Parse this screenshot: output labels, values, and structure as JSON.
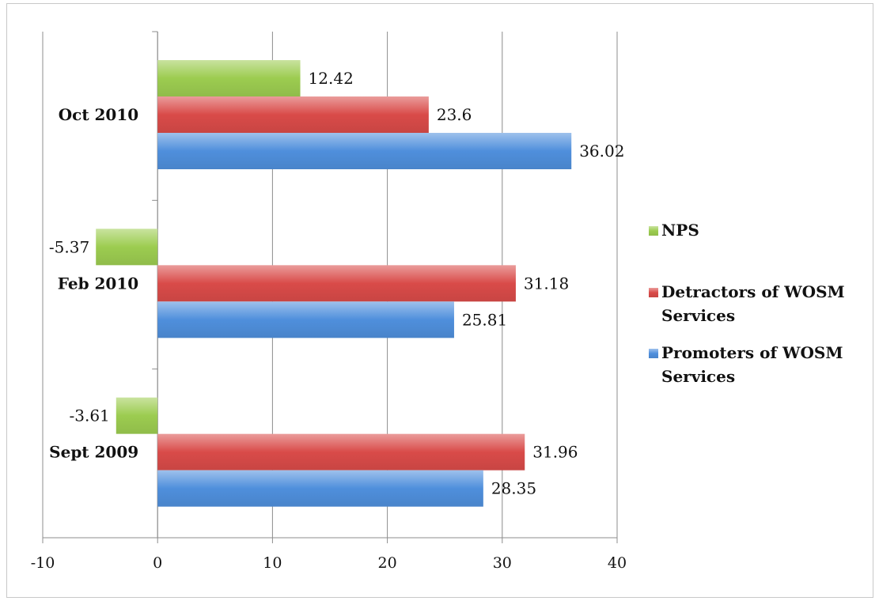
{
  "chart_data": {
    "type": "bar",
    "orientation": "horizontal",
    "title": "",
    "xlabel": "",
    "ylabel": "",
    "categories": [
      "Sept 2009",
      "Feb 2010",
      "Oct 2010"
    ],
    "series": [
      {
        "name": "Promoters of WOSM Services",
        "values": [
          28.35,
          25.81,
          36.02
        ],
        "labels": [
          "28.35",
          "25.81",
          "36.02"
        ]
      },
      {
        "name": "Detractors of WOSM Services",
        "values": [
          31.96,
          31.18,
          23.6
        ],
        "labels": [
          "31.96",
          "31.18",
          "23.6"
        ]
      },
      {
        "name": "NPS",
        "values": [
          -3.61,
          -5.37,
          12.42
        ],
        "labels": [
          "-3.61",
          "-5.37",
          "12.42"
        ]
      }
    ],
    "legend_order": [
      "NPS",
      "Detractors of WOSM Services",
      "Promoters of WOSM Services"
    ],
    "legend_lines": {
      "NPS": [
        "NPS"
      ],
      "Detractors of WOSM Services": [
        "Detractors of WOSM",
        "Services"
      ],
      "Promoters of WOSM Services": [
        "Promoters of WOSM",
        "Services"
      ]
    },
    "xlim": [
      -10,
      40
    ],
    "xticks": [
      -10,
      0,
      10,
      20,
      30,
      40
    ],
    "grid": "vertical",
    "legend_position": "right",
    "colors": {
      "NPS": "#9ccc50",
      "Detractors of WOSM Services": "#d94b49",
      "Promoters of WOSM Services": "#4f8fdc"
    }
  }
}
